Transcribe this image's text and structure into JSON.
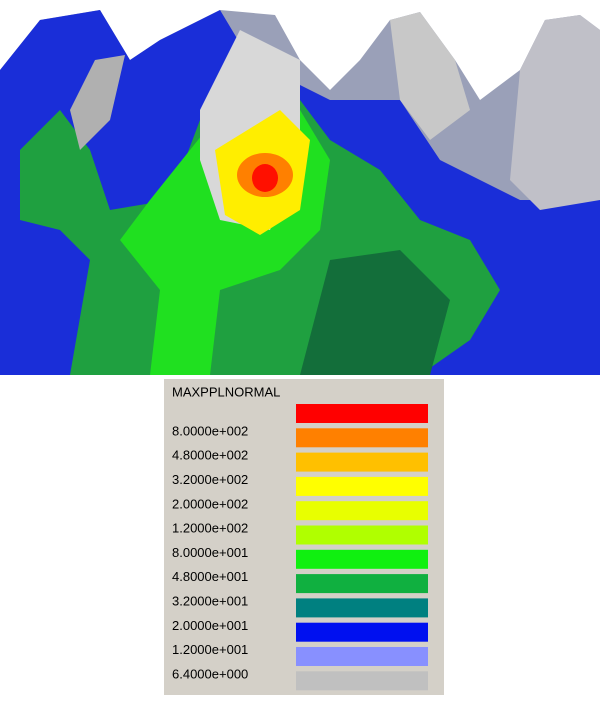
{
  "legend": {
    "title": "MAXPPLNORMAL",
    "labels": [
      "8.0000e+002",
      "4.8000e+002",
      "3.2000e+002",
      "2.0000e+002",
      "1.2000e+002",
      "8.0000e+001",
      "4.8000e+001",
      "3.2000e+001",
      "2.0000e+001",
      "1.2000e+001",
      "6.4000e+000"
    ],
    "colors": [
      "#ff0000",
      "#ff8000",
      "#ffc000",
      "#ffff00",
      "#e8ff00",
      "#b0ff00",
      "#10f010",
      "#10b040",
      "#008080",
      "#0010f0",
      "#8890ff",
      "#c0c0c0"
    ]
  }
}
